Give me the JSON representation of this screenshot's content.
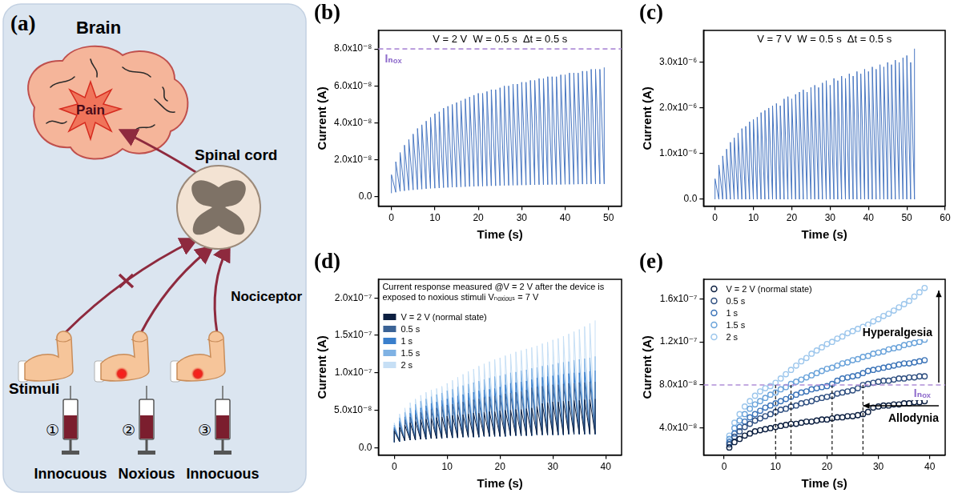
{
  "panel_a": {
    "label": "(a)",
    "brain": "Brain",
    "pain": "Pain",
    "spinal_cord": "Spinal cord",
    "nociceptor": "Nociceptor",
    "stimuli_title": "Stimuli",
    "stimuli": [
      {
        "number": "①",
        "label": "Innocuous"
      },
      {
        "number": "②",
        "label": "Noxious"
      },
      {
        "number": "③",
        "label": "Innocuous"
      }
    ]
  },
  "chart_data": [
    {
      "panel": "(b)",
      "type": "line",
      "title": "V = 2 V  W = 0.5 s  Δt = 0.5 s",
      "x_label": "Time (s)",
      "y_label": "Current (A)",
      "color": "#4a78c2",
      "grid": false,
      "threshold": {
        "value": 8e-08,
        "label": "Iₙₒₓ"
      },
      "x": [
        0,
        1,
        2,
        3,
        4,
        5,
        6,
        7,
        8,
        9,
        10,
        11,
        12,
        13,
        14,
        15,
        16,
        17,
        18,
        19,
        20,
        21,
        22,
        23,
        24,
        25,
        26,
        27,
        28,
        29,
        30,
        31,
        32,
        33,
        34,
        35,
        36,
        37,
        38,
        39,
        40,
        41,
        42,
        43,
        44,
        45,
        46,
        47,
        48,
        49
      ],
      "values": [
        1.2e-08,
        1.9e-08,
        2.4e-08,
        2.8e-08,
        3.1e-08,
        3.4e-08,
        3.7e-08,
        3.9e-08,
        4.1e-08,
        4.3e-08,
        4.5e-08,
        4.6e-08,
        4.8e-08,
        4.9e-08,
        5e-08,
        5.1e-08,
        5.2e-08,
        5.3e-08,
        5.4e-08,
        5.5e-08,
        5.6e-08,
        5.6e-08,
        5.7e-08,
        5.8e-08,
        5.8e-08,
        5.9e-08,
        6e-08,
        6e-08,
        6.1e-08,
        6.1e-08,
        6.2e-08,
        6.2e-08,
        6.3e-08,
        6.3e-08,
        6.4e-08,
        6.4e-08,
        6.5e-08,
        6.5e-08,
        6.5e-08,
        6.6e-08,
        6.6e-08,
        6.7e-08,
        6.7e-08,
        6.7e-08,
        6.8e-08,
        6.8e-08,
        6.9e-08,
        6.9e-08,
        6.9e-08,
        7e-08
      ],
      "baseline": [
        2e-09,
        2.5e-09,
        3e-09,
        3.3e-09,
        3.6e-09,
        3.8e-09,
        4e-09,
        4.2e-09,
        4.4e-09,
        4.6e-09,
        4.7e-09,
        4.8e-09,
        5e-09,
        5.1e-09,
        5.2e-09,
        5.3e-09,
        5.4e-09,
        5.5e-09,
        5.6e-09,
        5.7e-09,
        5.8e-09,
        5.8e-09,
        5.9e-09,
        6e-09,
        6e-09,
        6.1e-09,
        6.2e-09,
        6.2e-09,
        6.3e-09,
        6.3e-09,
        6.4e-09,
        6.4e-09,
        6.5e-09,
        6.5e-09,
        6.6e-09,
        6.6e-09,
        6.6e-09,
        6.7e-09,
        6.7e-09,
        6.7e-09,
        6.8e-09,
        6.8e-09,
        6.8e-09,
        6.9e-09,
        6.9e-09,
        6.9e-09,
        7e-09,
        7e-09,
        7e-09,
        7e-09
      ],
      "xlim": [
        -3,
        53
      ],
      "xticks": [
        0,
        10,
        20,
        30,
        40,
        50
      ],
      "ylim": [
        -5e-09,
        9e-08
      ],
      "yticks": [
        {
          "value": 0,
          "label": "0.0"
        },
        {
          "value": 2e-08,
          "label": "2.0x10⁻⁸"
        },
        {
          "value": 4e-08,
          "label": "4.0x10⁻⁸"
        },
        {
          "value": 6e-08,
          "label": "6.0x10⁻⁸"
        },
        {
          "value": 8e-08,
          "label": "8.0x10⁻⁸"
        }
      ]
    },
    {
      "panel": "(c)",
      "type": "line",
      "title": "V = 7 V  W = 0.5 s  Δt = 0.5 s",
      "x_label": "Time (s)",
      "y_label": "Current (A)",
      "color": "#4a78c2",
      "grid": false,
      "x": [
        0,
        1,
        2,
        3,
        4,
        5,
        6,
        7,
        8,
        9,
        10,
        11,
        12,
        13,
        14,
        15,
        16,
        17,
        18,
        19,
        20,
        21,
        22,
        23,
        24,
        25,
        26,
        27,
        28,
        29,
        30,
        31,
        32,
        33,
        34,
        35,
        36,
        37,
        38,
        39,
        40,
        41,
        42,
        43,
        44,
        45,
        46,
        47,
        48,
        49,
        50,
        51,
        52
      ],
      "values": [
        4.5e-07,
        7.5e-07,
        9.5e-07,
        1.1e-06,
        1.25e-06,
        1.35e-06,
        1.45e-06,
        1.55e-06,
        1.6e-06,
        1.7e-06,
        1.75e-06,
        1.8e-06,
        1.9e-06,
        1.95e-06,
        2e-06,
        2.05e-06,
        2.1e-06,
        2.05e-06,
        2.2e-06,
        2.25e-06,
        2.2e-06,
        2.3e-06,
        2.35e-06,
        2.4e-06,
        2.35e-06,
        2.45e-06,
        2.5e-06,
        2.45e-06,
        2.55e-06,
        2.6e-06,
        2.5e-06,
        2.65e-06,
        2.6e-06,
        2.7e-06,
        2.65e-06,
        2.75e-06,
        2.7e-06,
        2.8e-06,
        2.75e-06,
        2.85e-06,
        2.8e-06,
        2.9e-06,
        2.85e-06,
        2.95e-06,
        2.9e-06,
        3e-06,
        2.95e-06,
        3.05e-06,
        3e-06,
        3.1e-06,
        3.15e-06,
        3e-06,
        3.3e-06
      ],
      "baseline": [
        0,
        0,
        0,
        0,
        0,
        0,
        0,
        0,
        0,
        0,
        0,
        0,
        0,
        0,
        0,
        0,
        0,
        0,
        0,
        0,
        0,
        0,
        0,
        0,
        0,
        0,
        0,
        0,
        0,
        0,
        0,
        0,
        0,
        0,
        0,
        0,
        0,
        0,
        0,
        0,
        0,
        0,
        0,
        0,
        0,
        0,
        0,
        0,
        0,
        0,
        0,
        0,
        0
      ],
      "xlim": [
        -3,
        60
      ],
      "xticks": [
        0,
        10,
        20,
        30,
        40,
        50,
        60
      ],
      "ylim": [
        -1.5e-07,
        3.7e-06
      ],
      "yticks": [
        {
          "value": 0,
          "label": "0.0"
        },
        {
          "value": 1e-06,
          "label": "1.0x10⁻⁶"
        },
        {
          "value": 2e-06,
          "label": "2.0x10⁻⁶"
        },
        {
          "value": 3e-06,
          "label": "3.0x10⁻⁶"
        }
      ]
    },
    {
      "panel": "(d)",
      "type": "line",
      "title": "Current response measured @V = 2 V after the device is exposed to noxious stimuli Vₙₒₓᵢₒᵤₛ = 7 V",
      "x_label": "Time (s)",
      "y_label": "Current (A)",
      "legend": "upper left",
      "grid": false,
      "x": [
        0,
        1,
        2,
        3,
        4,
        5,
        6,
        7,
        8,
        9,
        10,
        11,
        12,
        13,
        14,
        15,
        16,
        17,
        18,
        19,
        20,
        21,
        22,
        23,
        24,
        25,
        26,
        27,
        28,
        29,
        30,
        31,
        32,
        33,
        34,
        35,
        36,
        37,
        38
      ],
      "baseline": [
        7e-09,
        8e-09,
        9e-09,
        1e-08,
        1e-08,
        1.1e-08,
        1.1e-08,
        1.2e-08,
        1.2e-08,
        1.2e-08,
        1.3e-08,
        1.3e-08,
        1.3e-08,
        1.4e-08,
        1.4e-08,
        1.4e-08,
        1.4e-08,
        1.5e-08,
        1.5e-08,
        1.5e-08,
        1.5e-08,
        1.5e-08,
        1.6e-08,
        1.6e-08,
        1.6e-08,
        1.6e-08,
        1.6e-08,
        1.7e-08,
        1.7e-08,
        1.7e-08,
        1.7e-08,
        1.7e-08,
        1.7e-08,
        1.8e-08,
        1.8e-08,
        1.8e-08,
        1.8e-08,
        1.8e-08,
        1.8e-08
      ],
      "series": [
        {
          "name": "V = 2 V (normal state)",
          "color": "#0c1f40",
          "values": [
            2.2e-08,
            2.7e-08,
            3e-08,
            3.3e-08,
            3.5e-08,
            3.7e-08,
            3.8e-08,
            3.9e-08,
            4e-08,
            4.1e-08,
            4.2e-08,
            4.3e-08,
            4.4e-08,
            4.4e-08,
            4.5e-08,
            4.6e-08,
            4.6e-08,
            4.7e-08,
            4.8e-08,
            4.8e-08,
            4.9e-08,
            5e-08,
            5e-08,
            5.1e-08,
            5.1e-08,
            5.2e-08,
            5.3e-08,
            5.5e-08,
            5.9e-08,
            6e-08,
            6.1e-08,
            6.1e-08,
            6.2e-08,
            6.2e-08,
            6.3e-08,
            6.3e-08,
            6.4e-08,
            6.4e-08,
            6.5e-08
          ]
        },
        {
          "name": "0.5 s",
          "color": "#3b6396",
          "values": [
            2.5e-08,
            3.2e-08,
            3.7e-08,
            4.1e-08,
            4.4e-08,
            4.7e-08,
            4.9e-08,
            5.1e-08,
            5.3e-08,
            5.5e-08,
            5.7e-08,
            5.8e-08,
            6e-08,
            6.1e-08,
            6.3e-08,
            6.4e-08,
            6.5e-08,
            6.7e-08,
            6.8e-08,
            6.9e-08,
            7e-08,
            7.2e-08,
            7.3e-08,
            7.4e-08,
            7.5e-08,
            7.7e-08,
            8e-08,
            8.1e-08,
            8.2e-08,
            8.3e-08,
            8.4e-08,
            8.4e-08,
            8.5e-08,
            8.6e-08,
            8.6e-08,
            8.7e-08,
            8.7e-08,
            8.8e-08,
            8.8e-08
          ]
        },
        {
          "name": "1 s",
          "color": "#3a7fcc",
          "values": [
            2.7e-08,
            3.5e-08,
            4.1e-08,
            4.6e-08,
            5e-08,
            5.3e-08,
            5.6e-08,
            5.9e-08,
            6.1e-08,
            6.3e-08,
            6.5e-08,
            6.7e-08,
            6.9e-08,
            7.1e-08,
            7.3e-08,
            7.4e-08,
            7.6e-08,
            7.7e-08,
            7.8e-08,
            7.9e-08,
            8.1e-08,
            8.4e-08,
            8.6e-08,
            8.7e-08,
            8.8e-08,
            8.9e-08,
            9.1e-08,
            9.3e-08,
            9.4e-08,
            9.5e-08,
            9.6e-08,
            9.7e-08,
            9.8e-08,
            9.9e-08,
            1e-07,
            1e-07,
            1.01e-07,
            1.02e-07,
            1.03e-07
          ]
        },
        {
          "name": "1.5 s",
          "color": "#7fb2e4",
          "values": [
            3e-08,
            4e-08,
            4.7e-08,
            5.3e-08,
            5.8e-08,
            6.2e-08,
            6.5e-08,
            6.8e-08,
            7.1e-08,
            7.3e-08,
            7.6e-08,
            7.8e-08,
            8.1e-08,
            8.3e-08,
            8.5e-08,
            8.7e-08,
            8.9e-08,
            9.1e-08,
            9.3e-08,
            9.5e-08,
            9.6e-08,
            9.8e-08,
            1e-07,
            1.01e-07,
            1.03e-07,
            1.04e-07,
            1.06e-07,
            1.07e-07,
            1.09e-07,
            1.1e-07,
            1.11e-07,
            1.13e-07,
            1.14e-07,
            1.15e-07,
            1.17e-07,
            1.18e-07,
            1.19e-07,
            1.2e-07,
            1.22e-07
          ]
        },
        {
          "name": "2 s",
          "color": "#c6dff5",
          "values": [
            3.3e-08,
            4.5e-08,
            5.3e-08,
            6e-08,
            6.5e-08,
            7e-08,
            7.4e-08,
            7.7e-08,
            7.9e-08,
            8.2e-08,
            8.6e-08,
            9e-08,
            9.4e-08,
            9.8e-08,
            1.02e-07,
            1.05e-07,
            1.09e-07,
            1.12e-07,
            1.15e-07,
            1.18e-07,
            1.2e-07,
            1.23e-07,
            1.25e-07,
            1.28e-07,
            1.3e-07,
            1.32e-07,
            1.34e-07,
            1.36e-07,
            1.39e-07,
            1.41e-07,
            1.44e-07,
            1.46e-07,
            1.49e-07,
            1.52e-07,
            1.55e-07,
            1.58e-07,
            1.62e-07,
            1.66e-07,
            1.7e-07
          ]
        }
      ],
      "xlim": [
        -3,
        43
      ],
      "xticks": [
        0,
        10,
        20,
        30,
        40
      ],
      "ylim": [
        -1e-08,
        2.25e-07
      ],
      "yticks": [
        {
          "value": 0,
          "label": "0.0"
        },
        {
          "value": 5e-08,
          "label": "5.0x10⁻⁸"
        },
        {
          "value": 1e-07,
          "label": "1.0x10⁻⁷"
        },
        {
          "value": 1.5e-07,
          "label": "1.5x10⁻⁷"
        },
        {
          "value": 2e-07,
          "label": "2.0x10⁻⁷"
        }
      ]
    },
    {
      "panel": "(e)",
      "type": "scatter",
      "x_label": "Time (s)",
      "y_label": "Current (A)",
      "legend": "upper left",
      "grid": false,
      "marker": "circle",
      "threshold": {
        "value": 8e-08,
        "label": "Iₙₒₓ"
      },
      "crossing_times": [
        10,
        13,
        21,
        27
      ],
      "annotations": [
        {
          "text": "Hyperalgesia",
          "arrow": "up"
        },
        {
          "text": "Allodynia",
          "arrow": "left"
        }
      ],
      "x": [
        1,
        2,
        3,
        4,
        5,
        6,
        7,
        8,
        9,
        10,
        11,
        12,
        13,
        14,
        15,
        16,
        17,
        18,
        19,
        20,
        21,
        22,
        23,
        24,
        25,
        26,
        27,
        28,
        29,
        30,
        31,
        32,
        33,
        34,
        35,
        36,
        37,
        38,
        39
      ],
      "series": [
        {
          "name": "V = 2 V (normal state)",
          "color": "#0c1f40",
          "values": [
            2.2e-08,
            2.7e-08,
            3e-08,
            3.3e-08,
            3.5e-08,
            3.7e-08,
            3.8e-08,
            3.9e-08,
            4e-08,
            4.1e-08,
            4.2e-08,
            4.3e-08,
            4.4e-08,
            4.4e-08,
            4.5e-08,
            4.6e-08,
            4.6e-08,
            4.7e-08,
            4.8e-08,
            4.8e-08,
            4.9e-08,
            5e-08,
            5e-08,
            5.1e-08,
            5.1e-08,
            5.2e-08,
            5.3e-08,
            5.5e-08,
            5.9e-08,
            6e-08,
            6.1e-08,
            6.1e-08,
            6.2e-08,
            6.2e-08,
            6.3e-08,
            6.3e-08,
            6.4e-08,
            6.4e-08,
            6.5e-08
          ]
        },
        {
          "name": "0.5 s",
          "color": "#2f4f80",
          "values": [
            2.5e-08,
            3.2e-08,
            3.7e-08,
            4.1e-08,
            4.4e-08,
            4.7e-08,
            4.9e-08,
            5.1e-08,
            5.3e-08,
            5.5e-08,
            5.7e-08,
            5.8e-08,
            6e-08,
            6.1e-08,
            6.3e-08,
            6.4e-08,
            6.5e-08,
            6.7e-08,
            6.8e-08,
            6.9e-08,
            7e-08,
            7.2e-08,
            7.3e-08,
            7.4e-08,
            7.5e-08,
            7.7e-08,
            8e-08,
            8.1e-08,
            8.2e-08,
            8.3e-08,
            8.4e-08,
            8.4e-08,
            8.5e-08,
            8.6e-08,
            8.6e-08,
            8.7e-08,
            8.7e-08,
            8.8e-08,
            8.8e-08
          ]
        },
        {
          "name": "1 s",
          "color": "#3c74b8",
          "values": [
            2.7e-08,
            3.5e-08,
            4.1e-08,
            4.6e-08,
            5e-08,
            5.3e-08,
            5.6e-08,
            5.9e-08,
            6.1e-08,
            6.3e-08,
            6.5e-08,
            6.7e-08,
            6.9e-08,
            7.1e-08,
            7.3e-08,
            7.4e-08,
            7.6e-08,
            7.7e-08,
            7.8e-08,
            7.9e-08,
            8.1e-08,
            8.4e-08,
            8.6e-08,
            8.7e-08,
            8.8e-08,
            8.9e-08,
            9.1e-08,
            9.3e-08,
            9.4e-08,
            9.5e-08,
            9.6e-08,
            9.7e-08,
            9.8e-08,
            9.9e-08,
            1e-07,
            1e-07,
            1.01e-07,
            1.02e-07,
            1.03e-07
          ]
        },
        {
          "name": "1.5 s",
          "color": "#6aa3da",
          "values": [
            3e-08,
            4e-08,
            4.7e-08,
            5.3e-08,
            5.8e-08,
            6.2e-08,
            6.5e-08,
            6.8e-08,
            7.1e-08,
            7.3e-08,
            7.6e-08,
            7.8e-08,
            8.1e-08,
            8.3e-08,
            8.5e-08,
            8.7e-08,
            8.9e-08,
            9.1e-08,
            9.3e-08,
            9.5e-08,
            9.6e-08,
            9.8e-08,
            1e-07,
            1.01e-07,
            1.03e-07,
            1.04e-07,
            1.06e-07,
            1.07e-07,
            1.09e-07,
            1.1e-07,
            1.11e-07,
            1.13e-07,
            1.14e-07,
            1.15e-07,
            1.17e-07,
            1.18e-07,
            1.19e-07,
            1.2e-07,
            1.22e-07
          ]
        },
        {
          "name": "2 s",
          "color": "#9cc6ec",
          "values": [
            3.3e-08,
            4.5e-08,
            5.3e-08,
            6e-08,
            6.5e-08,
            7e-08,
            7.4e-08,
            7.7e-08,
            7.9e-08,
            8.2e-08,
            8.6e-08,
            9e-08,
            9.4e-08,
            9.8e-08,
            1.02e-07,
            1.05e-07,
            1.09e-07,
            1.12e-07,
            1.15e-07,
            1.18e-07,
            1.2e-07,
            1.23e-07,
            1.25e-07,
            1.28e-07,
            1.3e-07,
            1.32e-07,
            1.34e-07,
            1.36e-07,
            1.39e-07,
            1.41e-07,
            1.44e-07,
            1.46e-07,
            1.49e-07,
            1.52e-07,
            1.55e-07,
            1.58e-07,
            1.62e-07,
            1.66e-07,
            1.7e-07
          ]
        }
      ],
      "xlim": [
        -4,
        43
      ],
      "xticks": [
        0,
        10,
        20,
        30,
        40
      ],
      "ylim": [
        1.5e-08,
        1.78e-07
      ],
      "yticks": [
        {
          "value": 4e-08,
          "label": "4.0x10⁻⁸"
        },
        {
          "value": 8e-08,
          "label": "8.0x10⁻⁸"
        },
        {
          "value": 1.2e-07,
          "label": "1.2x10⁻⁷"
        },
        {
          "value": 1.6e-07,
          "label": "1.6x10⁻⁷"
        }
      ]
    }
  ]
}
